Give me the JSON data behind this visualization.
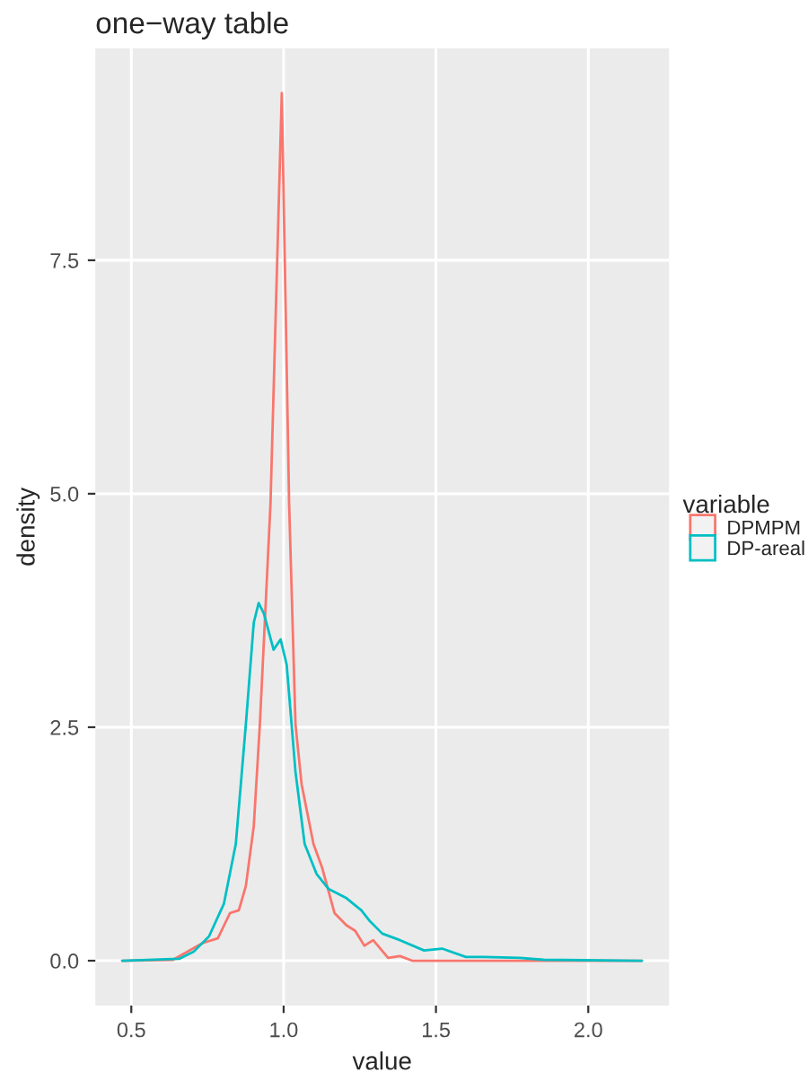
{
  "chart_data": {
    "type": "line",
    "title": "one−way table",
    "xlabel": "value",
    "ylabel": "density",
    "legend_title": "variable",
    "series": [
      {
        "name": "DPMPM",
        "color": "#f8766d",
        "x": [
          0.47,
          0.637,
          0.735,
          0.784,
          0.824,
          0.853,
          0.876,
          0.902,
          0.922,
          0.941,
          0.957,
          0.994,
          1.018,
          1.039,
          1.059,
          1.098,
          1.127,
          1.167,
          1.206,
          1.235,
          1.265,
          1.294,
          1.343,
          1.382,
          1.422,
          2.176
        ],
        "values": [
          0,
          0.01,
          0.19,
          0.24,
          0.51,
          0.54,
          0.8,
          1.44,
          2.53,
          3.81,
          4.9,
          9.29,
          4.9,
          2.53,
          1.89,
          1.25,
          0.99,
          0.51,
          0.38,
          0.32,
          0.16,
          0.22,
          0.03,
          0.05,
          0,
          0
        ]
      },
      {
        "name": "DP-areal",
        "color": "#00bfc4",
        "x": [
          0.47,
          0.657,
          0.706,
          0.755,
          0.804,
          0.843,
          0.876,
          0.902,
          0.918,
          0.935,
          0.967,
          0.99,
          1.01,
          1.039,
          1.069,
          1.108,
          1.147,
          1.206,
          1.255,
          1.284,
          1.324,
          1.382,
          1.461,
          1.52,
          1.598,
          1.657,
          1.775,
          1.853,
          2.176
        ],
        "values": [
          0,
          0.02,
          0.1,
          0.26,
          0.61,
          1.25,
          2.53,
          3.62,
          3.83,
          3.72,
          3.33,
          3.44,
          3.17,
          2.02,
          1.25,
          0.93,
          0.77,
          0.67,
          0.54,
          0.42,
          0.29,
          0.22,
          0.11,
          0.13,
          0.04,
          0.04,
          0.03,
          0.01,
          0
        ]
      }
    ],
    "xlim": [
      0.382,
      2.265
    ],
    "xticks": [
      {
        "value": 0.5,
        "label": "0.5"
      },
      {
        "value": 1.0,
        "label": "1.0"
      },
      {
        "value": 1.5,
        "label": "1.5"
      },
      {
        "value": 2.0,
        "label": "2.0"
      }
    ],
    "ylim": [
      -0.48,
      9.77
    ],
    "yticks": [
      {
        "value": 0,
        "label": "0.0"
      },
      {
        "value": 2.5,
        "label": "2.5"
      },
      {
        "value": 5.0,
        "label": "5.0"
      },
      {
        "value": 7.5,
        "label": "7.5"
      }
    ],
    "grid": true,
    "legend": "right"
  }
}
